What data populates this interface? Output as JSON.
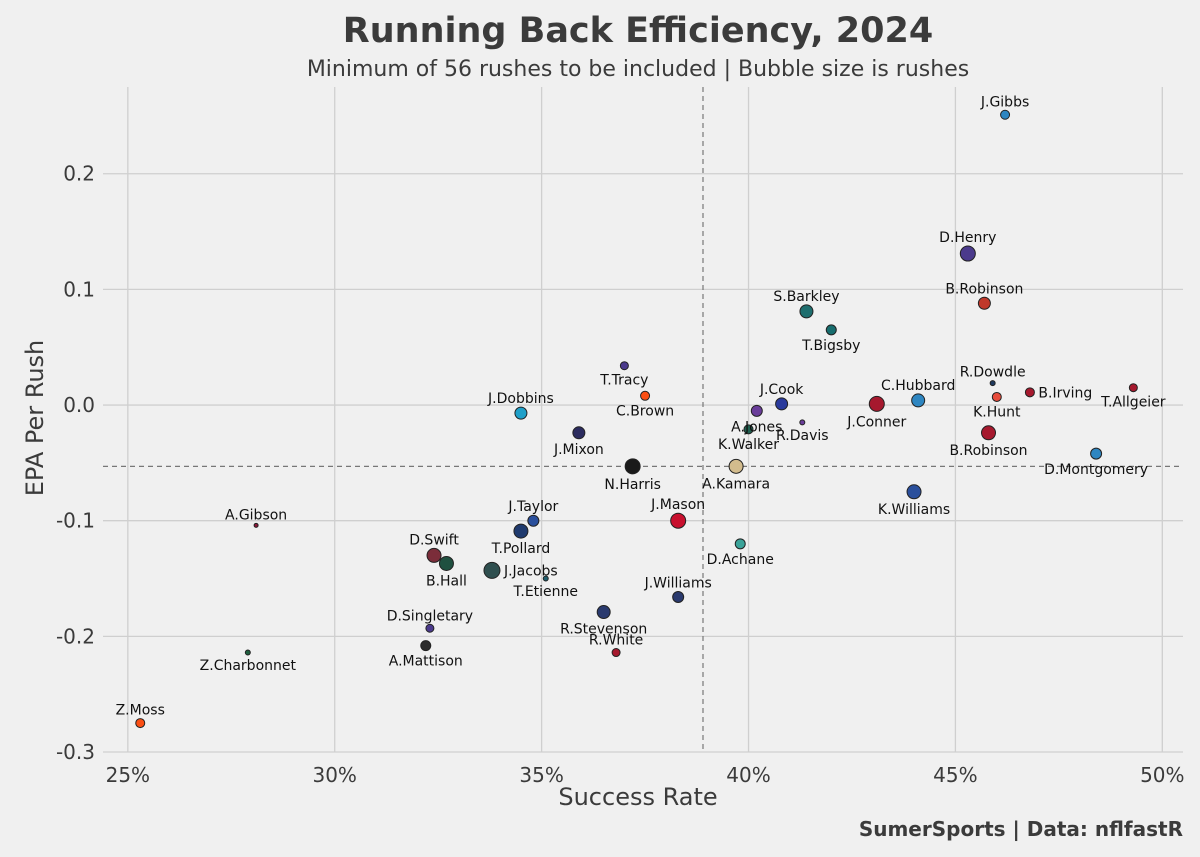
{
  "chart_data": {
    "type": "scatter",
    "title": "Running Back Efficiency, 2024",
    "subtitle": "Minimum of 56 rushes to be included | Bubble size is rushes",
    "xlabel": "Success Rate",
    "ylabel": "EPA Per Rush",
    "xlim": [
      0.244,
      0.505
    ],
    "ylim": [
      -0.3,
      0.275
    ],
    "x_ticks": [
      0.25,
      0.3,
      0.35,
      0.4,
      0.45,
      0.5
    ],
    "x_tick_labels": [
      "25%",
      "30%",
      "35%",
      "40%",
      "45%",
      "50%"
    ],
    "y_ticks": [
      0.2,
      0.1,
      0.0,
      -0.1,
      -0.2,
      -0.3
    ],
    "y_tick_labels": [
      "0.2",
      "0.1",
      "0.0",
      "-0.1",
      "-0.2",
      "-0.3"
    ],
    "grid": true,
    "reference_lines": {
      "x": 0.389,
      "y": -0.053
    },
    "credit": "SumerSports | Data: nflfastR",
    "points": [
      {
        "name": "J.Gibbs",
        "x": 0.462,
        "y": 0.251,
        "size": 4.5,
        "color": "#2e86c1",
        "label_pos": "above"
      },
      {
        "name": "D.Henry",
        "x": 0.453,
        "y": 0.131,
        "size": 7.5,
        "color": "#4b3a8c",
        "label_pos": "above"
      },
      {
        "name": "B.Robinson",
        "x": 0.457,
        "y": 0.088,
        "size": 6,
        "color": "#c0392b",
        "label_pos": "above"
      },
      {
        "name": "S.Barkley",
        "x": 0.414,
        "y": 0.081,
        "size": 6.5,
        "color": "#1e6e6e",
        "label_pos": "above"
      },
      {
        "name": "T.Bigsby",
        "x": 0.42,
        "y": 0.065,
        "size": 5,
        "color": "#176d6e",
        "label_pos": "below"
      },
      {
        "name": "T.Tracy",
        "x": 0.37,
        "y": 0.034,
        "size": 4,
        "color": "#4b3a8c",
        "label_pos": "below"
      },
      {
        "name": "R.Dowdle",
        "x": 0.459,
        "y": 0.019,
        "size": 2.5,
        "color": "#1f3a5f",
        "label_pos": "above"
      },
      {
        "name": "T.Allgeier",
        "x": 0.493,
        "y": 0.015,
        "size": 4,
        "color": "#a6192e",
        "label_pos": "below"
      },
      {
        "name": "B.Irving",
        "x": 0.468,
        "y": 0.011,
        "size": 4.5,
        "color": "#a6192e",
        "label_pos": "right"
      },
      {
        "name": "C.Brown",
        "x": 0.375,
        "y": 0.008,
        "size": 4.5,
        "color": "#fb4f14",
        "label_pos": "below"
      },
      {
        "name": "K.Hunt",
        "x": 0.46,
        "y": 0.007,
        "size": 4.5,
        "color": "#e74c3c",
        "label_pos": "below"
      },
      {
        "name": "C.Hubbard",
        "x": 0.441,
        "y": 0.004,
        "size": 6.5,
        "color": "#2e86c1",
        "label_pos": "above"
      },
      {
        "name": "J.Conner",
        "x": 0.431,
        "y": 0.001,
        "size": 7.5,
        "color": "#a6192e",
        "label_pos": "below"
      },
      {
        "name": "J.Cook",
        "x": 0.408,
        "y": 0.001,
        "size": 6,
        "color": "#2a3a9c",
        "label_pos": "above"
      },
      {
        "name": "A.Jones",
        "x": 0.402,
        "y": -0.005,
        "size": 5.5,
        "color": "#6a3d9a",
        "label_pos": "below"
      },
      {
        "name": "J.Dobbins",
        "x": 0.345,
        "y": -0.007,
        "size": 6,
        "color": "#1fa0c9",
        "label_pos": "above"
      },
      {
        "name": "R.Davis",
        "x": 0.413,
        "y": -0.015,
        "size": 2.5,
        "color": "#6a3d9a",
        "label_pos": "below"
      },
      {
        "name": "K.Walker",
        "x": 0.4,
        "y": -0.021,
        "size": 4.5,
        "color": "#1f5f4f",
        "label_pos": "below"
      },
      {
        "name": "J.Mixon",
        "x": 0.359,
        "y": -0.024,
        "size": 6,
        "color": "#2b2b5e",
        "label_pos": "below"
      },
      {
        "name": "B.Robinson",
        "x": 0.458,
        "y": -0.024,
        "size": 7,
        "color": "#a6192e",
        "label_pos": "below"
      },
      {
        "name": "D.Montgomery",
        "x": 0.484,
        "y": -0.042,
        "size": 5.5,
        "color": "#2e86c1",
        "label_pos": "below"
      },
      {
        "name": "N.Harris",
        "x": 0.372,
        "y": -0.053,
        "size": 7.5,
        "color": "#1a1a1a",
        "label_pos": "below"
      },
      {
        "name": "A.Kamara",
        "x": 0.397,
        "y": -0.053,
        "size": 7,
        "color": "#d3bc8d",
        "label_pos": "below"
      },
      {
        "name": "K.Williams",
        "x": 0.44,
        "y": -0.075,
        "size": 7,
        "color": "#2a4f9c",
        "label_pos": "below"
      },
      {
        "name": "J.Mason",
        "x": 0.383,
        "y": -0.1,
        "size": 7.5,
        "color": "#c8102e",
        "label_pos": "above"
      },
      {
        "name": "A.Gibson",
        "x": 0.281,
        "y": -0.104,
        "size": 2,
        "color": "#8b1a3a",
        "label_pos": "above"
      },
      {
        "name": "J.Taylor",
        "x": 0.348,
        "y": -0.1,
        "size": 5.5,
        "color": "#2a4f9c",
        "label_pos": "above"
      },
      {
        "name": "T.Pollard",
        "x": 0.345,
        "y": -0.109,
        "size": 7,
        "color": "#1f3a6e",
        "label_pos": "below"
      },
      {
        "name": "D.Achane",
        "x": 0.398,
        "y": -0.12,
        "size": 5,
        "color": "#3aa399",
        "label_pos": "below"
      },
      {
        "name": "D.Swift",
        "x": 0.324,
        "y": -0.13,
        "size": 7,
        "color": "#7b2d3a",
        "label_pos": "above"
      },
      {
        "name": "B.Hall",
        "x": 0.327,
        "y": -0.137,
        "size": 7,
        "color": "#1f5040",
        "label_pos": "below"
      },
      {
        "name": "J.Jacobs",
        "x": 0.338,
        "y": -0.143,
        "size": 8,
        "color": "#2f4f4f",
        "label_pos": "right"
      },
      {
        "name": "T.Etienne",
        "x": 0.351,
        "y": -0.15,
        "size": 2.5,
        "color": "#1e5f6e",
        "label_pos": "below"
      },
      {
        "name": "J.Williams",
        "x": 0.383,
        "y": -0.166,
        "size": 5.5,
        "color": "#2a3a6e",
        "label_pos": "above"
      },
      {
        "name": "R.Stevenson",
        "x": 0.365,
        "y": -0.179,
        "size": 6.5,
        "color": "#2a3a6e",
        "label_pos": "below"
      },
      {
        "name": "D.Singletary",
        "x": 0.323,
        "y": -0.193,
        "size": 4,
        "color": "#4b3a8c",
        "label_pos": "above"
      },
      {
        "name": "A.Mattison",
        "x": 0.322,
        "y": -0.208,
        "size": 5,
        "color": "#2b2b2b",
        "label_pos": "below"
      },
      {
        "name": "R.White",
        "x": 0.368,
        "y": -0.214,
        "size": 4,
        "color": "#a6192e",
        "label_pos": "above"
      },
      {
        "name": "Z.Charbonnet",
        "x": 0.279,
        "y": -0.214,
        "size": 2.5,
        "color": "#1f5f3f",
        "label_pos": "below"
      },
      {
        "name": "Z.Moss",
        "x": 0.253,
        "y": -0.275,
        "size": 4.5,
        "color": "#fb4f14",
        "label_pos": "above"
      }
    ]
  }
}
